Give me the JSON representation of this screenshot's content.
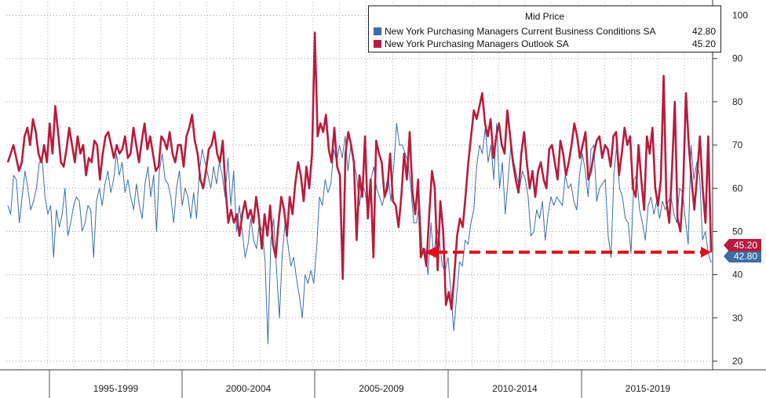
{
  "chart_data": {
    "type": "line",
    "title": "Mid Price",
    "xlabel": "",
    "ylabel": "",
    "ylim": [
      18,
      103
    ],
    "yticks": [
      20,
      30,
      40,
      50,
      60,
      70,
      80,
      90,
      100
    ],
    "x_labels": [
      "1995-1999",
      "2000-2004",
      "2005-2009",
      "2010-2014",
      "2015-2019"
    ],
    "legend_position": "top-right",
    "grid": true,
    "series": [
      {
        "name": "New York Purchasing Managers Current Business Conditions SA",
        "last": "42.80",
        "color": "#3a6ea5",
        "values": [
          56,
          54,
          63,
          62,
          52,
          58,
          64,
          60,
          55,
          57,
          60,
          66,
          67,
          58,
          54,
          56,
          44,
          55,
          51,
          54,
          60,
          49,
          52,
          56,
          58,
          57,
          50,
          52,
          56,
          55,
          44,
          57,
          60,
          56,
          61,
          64,
          59,
          62,
          68,
          63,
          66,
          59,
          62,
          58,
          55,
          61,
          56,
          53,
          61,
          65,
          58,
          63,
          50,
          64,
          68,
          62,
          61,
          58,
          52,
          60,
          64,
          56,
          60,
          58,
          53,
          59,
          53,
          64,
          69,
          66,
          63,
          60,
          65,
          61,
          66,
          63,
          58,
          67,
          56,
          64,
          50,
          56,
          50,
          44,
          47,
          53,
          48,
          46,
          52,
          50,
          43,
          24,
          48,
          53,
          41,
          30,
          45,
          52,
          47,
          42,
          44,
          39,
          35,
          30,
          40,
          38,
          41,
          38,
          46,
          58,
          56,
          62,
          59,
          61,
          69,
          66,
          70,
          67,
          72,
          64,
          70,
          66,
          63,
          56,
          61,
          59,
          54,
          62,
          65,
          60,
          58,
          56,
          59,
          63,
          57,
          65,
          75,
          70,
          70,
          68,
          66,
          60,
          52,
          52,
          57,
          45,
          46,
          40,
          52,
          44,
          51,
          48,
          42,
          41,
          44,
          36,
          27,
          35,
          43,
          42,
          48,
          47,
          52,
          55,
          65,
          70,
          68,
          74,
          66,
          70,
          62,
          75,
          60,
          66,
          54,
          62,
          70,
          66,
          63,
          60,
          64,
          62,
          58,
          49,
          50,
          55,
          53,
          57,
          48,
          54,
          58,
          56,
          58,
          57,
          56,
          63,
          60,
          61,
          57,
          55,
          63,
          68,
          64,
          58,
          69,
          70,
          57,
          60,
          61,
          62,
          49,
          44,
          63,
          70,
          60,
          58,
          53,
          52,
          45,
          62,
          63,
          55,
          52,
          48,
          56,
          58,
          54,
          57,
          53,
          57,
          55,
          57,
          58,
          54,
          52,
          60,
          59,
          53,
          47,
          70,
          62,
          66,
          63,
          48,
          50,
          45,
          42.8
        ]
      },
      {
        "name": "New York Purchasing Managers Outlook SA",
        "last": "45.20",
        "color": "#b71c3c",
        "values": [
          66,
          68,
          70,
          67,
          64,
          66,
          72,
          74,
          70,
          76,
          73,
          68,
          66,
          70,
          66,
          75,
          68,
          79,
          73,
          66,
          65,
          69,
          74,
          70,
          66,
          72,
          68,
          70,
          63,
          67,
          66,
          71,
          70,
          62,
          68,
          72,
          73,
          70,
          67,
          70,
          68,
          69,
          72,
          67,
          68,
          74,
          70,
          66,
          71,
          75,
          69,
          72,
          68,
          64,
          65,
          72,
          71,
          69,
          73,
          68,
          66,
          70,
          70,
          65,
          72,
          74,
          77,
          71,
          68,
          62,
          60,
          64,
          69,
          70,
          73,
          68,
          66,
          71,
          60,
          52,
          55,
          52,
          54,
          49,
          54,
          57,
          53,
          55,
          52,
          58,
          53,
          46,
          54,
          49,
          56,
          47,
          44,
          52,
          58,
          55,
          49,
          58,
          54,
          61,
          66,
          63,
          57,
          65,
          60,
          68,
          96,
          72,
          75,
          73,
          77,
          69,
          66,
          74,
          65,
          63,
          39,
          68,
          73,
          70,
          66,
          48,
          63,
          58,
          72,
          53,
          62,
          44,
          71,
          68,
          66,
          58,
          60,
          68,
          57,
          56,
          51,
          58,
          68,
          62,
          73,
          59,
          54,
          62,
          44,
          46,
          42,
          54,
          64,
          60,
          41,
          57,
          50,
          33,
          36,
          32,
          40,
          49,
          53,
          51,
          58,
          66,
          72,
          78,
          76,
          79,
          82,
          75,
          72,
          76,
          67,
          72,
          75,
          70,
          68,
          78,
          72,
          66,
          62,
          59,
          68,
          73,
          66,
          60,
          64,
          58,
          64,
          66,
          62,
          60,
          69,
          70,
          66,
          62,
          71,
          68,
          63,
          66,
          70,
          75,
          72,
          67,
          70,
          73,
          62,
          64,
          68,
          71,
          72,
          67,
          70,
          69,
          65,
          72,
          73,
          63,
          68,
          74,
          70,
          72,
          60,
          58,
          70,
          62,
          55,
          72,
          68,
          74,
          60,
          56,
          62,
          86,
          57,
          52,
          64,
          80,
          53,
          50,
          60,
          82,
          70,
          62,
          55,
          63,
          72,
          60,
          52,
          72,
          45.2
        ]
      }
    ]
  }
}
